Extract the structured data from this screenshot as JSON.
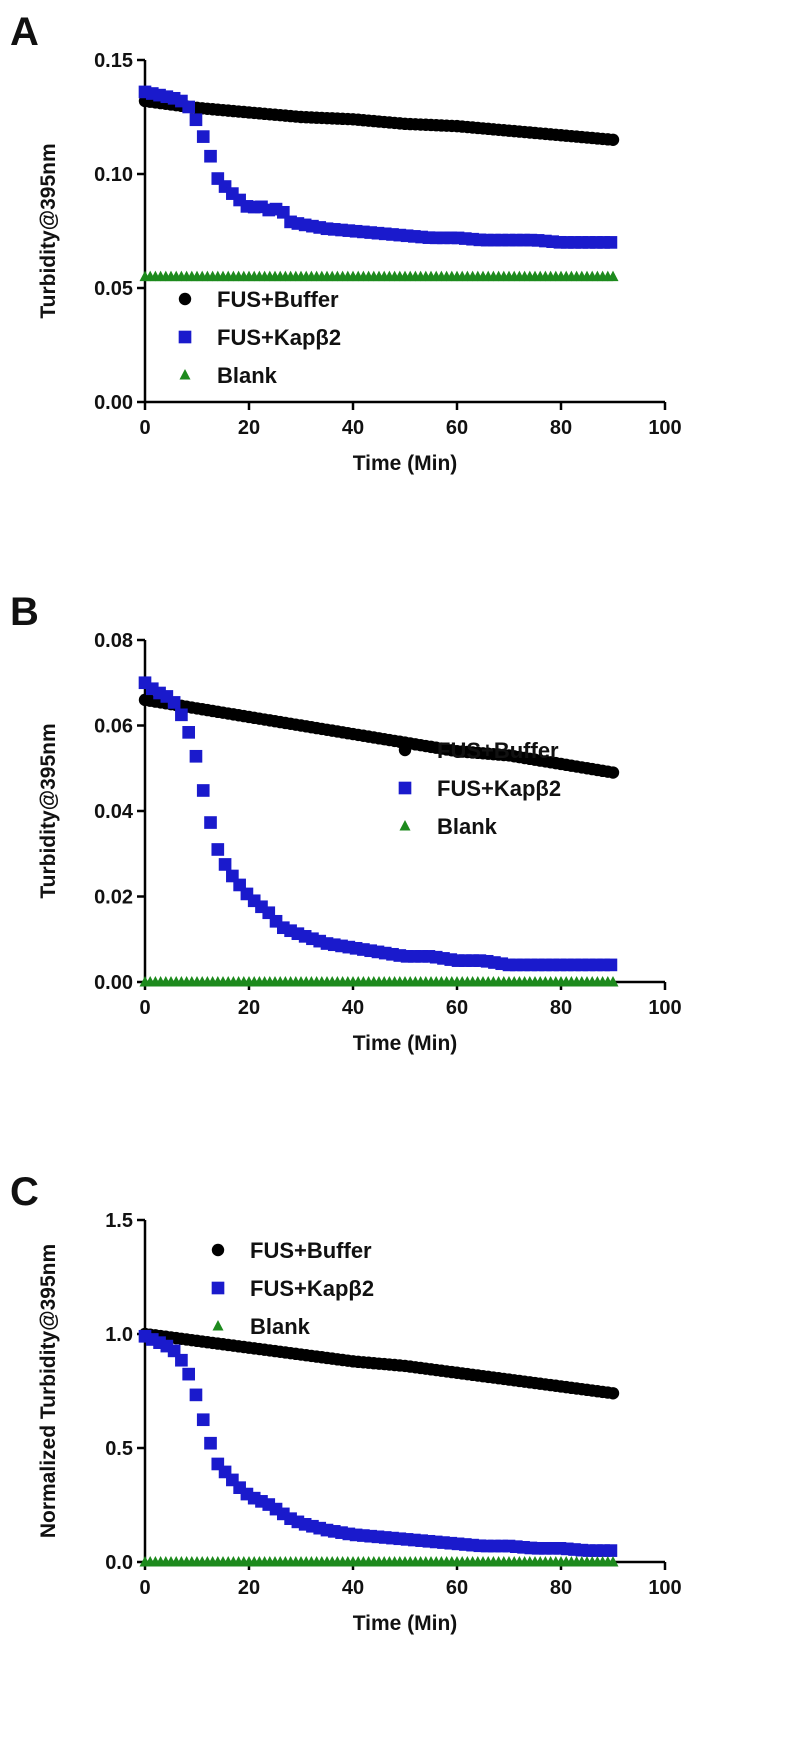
{
  "colors": {
    "buffer": "#000000",
    "kap": "#1a1acc",
    "blank": "#1d8a1d",
    "axis": "#000000"
  },
  "chart_data": [
    {
      "type": "scatter",
      "panel_label": "A",
      "xlabel": "Time (Min)",
      "ylabel": "Turbidity@395nm",
      "xlim": [
        0,
        100
      ],
      "ylim": [
        0,
        0.15
      ],
      "xticks": [
        "0",
        "20",
        "40",
        "60",
        "80",
        "100"
      ],
      "yticks": [
        "0.00",
        "0.05",
        "0.10",
        "0.15"
      ],
      "legend_position": "bottom-left",
      "series": [
        {
          "name": "FUS+Buffer",
          "marker": "circle",
          "x": [
            0,
            10,
            20,
            30,
            40,
            50,
            60,
            70,
            80,
            90
          ],
          "y": [
            0.132,
            0.129,
            0.127,
            0.125,
            0.124,
            0.122,
            0.121,
            0.119,
            0.117,
            0.115
          ]
        },
        {
          "name": "FUS+Kapβ2",
          "marker": "square",
          "x": [
            0,
            2,
            4,
            6,
            8,
            10,
            12,
            14,
            16,
            18,
            20,
            22,
            24,
            26,
            28,
            30,
            35,
            40,
            45,
            50,
            55,
            60,
            65,
            70,
            75,
            80,
            85,
            90
          ],
          "y": [
            0.136,
            0.135,
            0.134,
            0.133,
            0.131,
            0.123,
            0.112,
            0.098,
            0.093,
            0.089,
            0.085,
            0.086,
            0.084,
            0.085,
            0.079,
            0.078,
            0.076,
            0.075,
            0.074,
            0.073,
            0.072,
            0.072,
            0.071,
            0.071,
            0.071,
            0.07,
            0.07,
            0.07
          ]
        },
        {
          "name": "Blank",
          "marker": "triangle",
          "x": [
            0,
            10,
            20,
            30,
            40,
            50,
            60,
            70,
            80,
            90
          ],
          "y": [
            0.055,
            0.055,
            0.055,
            0.055,
            0.055,
            0.055,
            0.055,
            0.055,
            0.055,
            0.055
          ]
        }
      ]
    },
    {
      "type": "scatter",
      "panel_label": "B",
      "xlabel": "Time (Min)",
      "ylabel": "Turbidity@395nm",
      "xlim": [
        0,
        100
      ],
      "ylim": [
        0,
        0.08
      ],
      "xticks": [
        "0",
        "20",
        "40",
        "60",
        "80",
        "100"
      ],
      "yticks": [
        "0.00",
        "0.02",
        "0.04",
        "0.06",
        "0.08"
      ],
      "legend_position": "center-right",
      "series": [
        {
          "name": "FUS+Buffer",
          "marker": "circle",
          "x": [
            0,
            10,
            20,
            30,
            40,
            50,
            60,
            70,
            80,
            90
          ],
          "y": [
            0.066,
            0.064,
            0.062,
            0.06,
            0.058,
            0.056,
            0.054,
            0.053,
            0.051,
            0.049
          ]
        },
        {
          "name": "FUS+Kapβ2",
          "marker": "square",
          "x": [
            0,
            2,
            4,
            6,
            8,
            10,
            12,
            14,
            16,
            18,
            20,
            22,
            24,
            26,
            28,
            30,
            35,
            40,
            45,
            50,
            55,
            60,
            65,
            70,
            75,
            80,
            85,
            90
          ],
          "y": [
            0.07,
            0.068,
            0.067,
            0.065,
            0.06,
            0.052,
            0.04,
            0.031,
            0.026,
            0.023,
            0.02,
            0.018,
            0.016,
            0.013,
            0.012,
            0.011,
            0.009,
            0.008,
            0.007,
            0.006,
            0.006,
            0.005,
            0.005,
            0.004,
            0.004,
            0.004,
            0.004,
            0.004
          ]
        },
        {
          "name": "Blank",
          "marker": "triangle",
          "x": [
            0,
            10,
            20,
            30,
            40,
            50,
            60,
            70,
            80,
            90
          ],
          "y": [
            0.0,
            0.0,
            0.0,
            0.0,
            0.0,
            0.0,
            0.0,
            0.0,
            0.0,
            0.0
          ]
        }
      ]
    },
    {
      "type": "scatter",
      "panel_label": "C",
      "xlabel": "Time (Min)",
      "ylabel": "Normalized Turbidity@395nm",
      "xlim": [
        0,
        100
      ],
      "ylim": [
        0,
        1.5
      ],
      "xticks": [
        "0",
        "20",
        "40",
        "60",
        "80",
        "100"
      ],
      "yticks": [
        "0.0",
        "0.5",
        "1.0",
        "1.5"
      ],
      "legend_position": "top-center",
      "series": [
        {
          "name": "FUS+Buffer",
          "marker": "circle",
          "x": [
            0,
            10,
            20,
            30,
            40,
            50,
            60,
            70,
            80,
            90
          ],
          "y": [
            1.0,
            0.97,
            0.94,
            0.91,
            0.88,
            0.86,
            0.83,
            0.8,
            0.77,
            0.74
          ]
        },
        {
          "name": "FUS+Kapβ2",
          "marker": "square",
          "x": [
            0,
            2,
            4,
            6,
            8,
            10,
            12,
            14,
            16,
            18,
            20,
            22,
            24,
            26,
            28,
            30,
            35,
            40,
            45,
            50,
            55,
            60,
            65,
            70,
            75,
            80,
            85,
            90
          ],
          "y": [
            0.99,
            0.97,
            0.95,
            0.92,
            0.85,
            0.72,
            0.56,
            0.43,
            0.38,
            0.33,
            0.29,
            0.27,
            0.25,
            0.22,
            0.19,
            0.17,
            0.14,
            0.12,
            0.11,
            0.1,
            0.09,
            0.08,
            0.07,
            0.07,
            0.06,
            0.06,
            0.05,
            0.05
          ]
        },
        {
          "name": "Blank",
          "marker": "triangle",
          "x": [
            0,
            10,
            20,
            30,
            40,
            50,
            60,
            70,
            80,
            90
          ],
          "y": [
            0.0,
            0.0,
            0.0,
            0.0,
            0.0,
            0.0,
            0.0,
            0.0,
            0.0,
            0.0
          ]
        }
      ]
    }
  ]
}
